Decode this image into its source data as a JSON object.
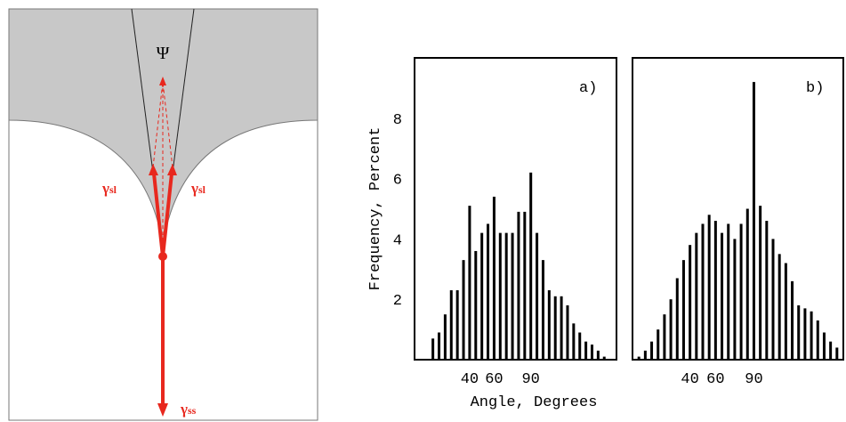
{
  "diagram": {
    "psi": "Ψ",
    "left_label": {
      "symbol": "γ",
      "subscript": "sl"
    },
    "right_label": {
      "symbol": "γ",
      "subscript": "sl"
    },
    "bottom_label": {
      "symbol": "γ",
      "subscript": "ss"
    }
  },
  "chart_data": [
    {
      "type": "bar",
      "label": "a)",
      "ylabel": "Frequency, Percent",
      "xlabel": "Angle, Degrees",
      "x": [
        10,
        15,
        20,
        25,
        30,
        35,
        40,
        45,
        50,
        55,
        60,
        65,
        70,
        75,
        80,
        85,
        90,
        95,
        100,
        105,
        110,
        115,
        120,
        125,
        130,
        135,
        140,
        145,
        150
      ],
      "values": [
        0.7,
        0.9,
        1.5,
        2.3,
        2.3,
        3.3,
        5.1,
        3.6,
        4.2,
        4.5,
        5.4,
        4.2,
        4.2,
        4.2,
        4.9,
        4.9,
        6.2,
        4.2,
        3.3,
        2.3,
        2.1,
        2.1,
        1.8,
        1.2,
        0.9,
        0.6,
        0.5,
        0.3,
        0.1
      ],
      "color": "#000000",
      "xlim": [
        -5,
        160
      ],
      "ylim": [
        0,
        10
      ],
      "xticks": [
        40,
        60,
        90
      ],
      "yticks": [
        2,
        4,
        6,
        8
      ]
    },
    {
      "type": "bar",
      "label": "b)",
      "x": [
        0,
        5,
        10,
        15,
        20,
        25,
        30,
        35,
        40,
        45,
        50,
        55,
        60,
        65,
        70,
        75,
        80,
        85,
        90,
        95,
        100,
        105,
        110,
        115,
        120,
        125,
        130,
        135,
        140,
        145,
        150,
        155
      ],
      "values": [
        0.1,
        0.3,
        0.6,
        1.0,
        1.5,
        2.0,
        2.7,
        3.3,
        3.8,
        4.2,
        4.5,
        4.8,
        4.6,
        4.2,
        4.5,
        4.0,
        4.5,
        5.0,
        9.2,
        5.1,
        4.6,
        4.0,
        3.5,
        3.2,
        2.6,
        1.8,
        1.7,
        1.6,
        1.3,
        0.9,
        0.6,
        0.4
      ],
      "color": "#000000",
      "xlim": [
        -5,
        160
      ],
      "ylim": [
        0,
        10
      ],
      "xticks": [
        40,
        60,
        90
      ]
    }
  ]
}
